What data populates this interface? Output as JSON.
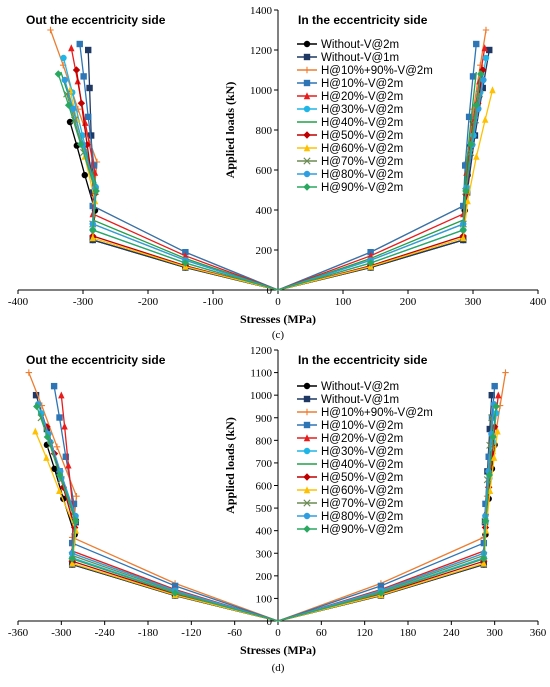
{
  "legend": [
    "Without-V@2m",
    "Without-V@1m",
    "H@10%+90%-V@2m",
    "H@10%-V@2m",
    "H@20%-V@2m",
    "H@30%-V@2m",
    "H@40%-V@2m",
    "H@50%-V@2m",
    "H@60%-V@2m",
    "H@70%-V@2m",
    "H@80%-V@2m",
    "H@90%-V@2m"
  ],
  "series_style": [
    {
      "color": "#000000",
      "marker": "circle"
    },
    {
      "color": "#1f3864",
      "marker": "square"
    },
    {
      "color": "#ed7d31",
      "marker": "plus"
    },
    {
      "color": "#2e75b6",
      "marker": "square"
    },
    {
      "color": "#e81c1c",
      "marker": "triangle"
    },
    {
      "color": "#1fb5e6",
      "marker": "circle"
    },
    {
      "color": "#23a048",
      "marker": "none"
    },
    {
      "color": "#c00000",
      "marker": "diamond"
    },
    {
      "color": "#ffc000",
      "marker": "triangle"
    },
    {
      "color": "#6d8b55",
      "marker": "x"
    },
    {
      "color": "#2f9ee0",
      "marker": "circle"
    },
    {
      "color": "#2aa860",
      "marker": "diamond"
    }
  ],
  "chart_data": [
    {
      "type": "line",
      "caption": "(c)",
      "left_title": "Out the eccentricity side",
      "right_title": "In the eccentricity side",
      "xlabel": "Stresses (MPa)",
      "ylabel": "Applied loads (kN)",
      "xlim": [
        -400,
        400
      ],
      "ylim": [
        0,
        1400
      ],
      "xticks": [
        -400,
        -300,
        -200,
        -100,
        0,
        100,
        200,
        300,
        400
      ],
      "yticks": [
        0,
        200,
        400,
        600,
        800,
        1000,
        1200,
        1400
      ],
      "yield_stress": 285,
      "series": [
        {
          "name": "Without-V@2m",
          "yield_load": 250,
          "max_load": 840,
          "left_end": -320,
          "right_end": 300
        },
        {
          "name": "Without-V@1m",
          "yield_load": 250,
          "max_load": 1200,
          "left_end": -292,
          "right_end": 325
        },
        {
          "name": "H@10%+90%-V@2m",
          "yield_load": 420,
          "max_load": 1300,
          "left_end": -350,
          "right_end": 320
        },
        {
          "name": "H@10%-V@2m",
          "yield_load": 420,
          "max_load": 1230,
          "left_end": -305,
          "right_end": 305
        },
        {
          "name": "H@20%-V@2m",
          "yield_load": 380,
          "max_load": 1210,
          "left_end": -318,
          "right_end": 318
        },
        {
          "name": "H@30%-V@2m",
          "yield_load": 300,
          "max_load": 1160,
          "left_end": -330,
          "right_end": 320
        },
        {
          "name": "H@40%-V@2m",
          "yield_load": 350,
          "max_load": 1090,
          "left_end": -334,
          "right_end": 305
        },
        {
          "name": "H@50%-V@2m",
          "yield_load": 270,
          "max_load": 1100,
          "left_end": -310,
          "right_end": 315
        },
        {
          "name": "H@60%-V@2m",
          "yield_load": 260,
          "max_load": 1000,
          "left_end": -320,
          "right_end": 330
        },
        {
          "name": "H@70%-V@2m",
          "yield_load": 330,
          "max_load": 980,
          "left_end": -325,
          "right_end": 310
        },
        {
          "name": "H@80%-V@2m",
          "yield_load": 330,
          "max_load": 1050,
          "left_end": -328,
          "right_end": 316
        },
        {
          "name": "H@90%-V@2m",
          "yield_load": 300,
          "max_load": 1080,
          "left_end": -338,
          "right_end": 312
        }
      ]
    },
    {
      "type": "line",
      "caption": "(d)",
      "left_title": "Out the eccentricity side",
      "right_title": "In the eccentricity side",
      "xlabel": "Stresses (MPa)",
      "ylabel": "Applied loads (kN)",
      "xlim": [
        -360,
        360
      ],
      "ylim": [
        0,
        1200
      ],
      "xticks": [
        -360,
        -300,
        -240,
        -180,
        -120,
        -60,
        0,
        60,
        120,
        180,
        240,
        300,
        360
      ],
      "yticks": [
        0,
        100,
        200,
        300,
        400,
        500,
        600,
        700,
        800,
        900,
        1000,
        1100,
        1200
      ],
      "yield_stress": 285,
      "series": [
        {
          "name": "Without-V@2m",
          "yield_load": 250,
          "max_load": 780,
          "left_end": -320,
          "right_end": 300
        },
        {
          "name": "Without-V@1m",
          "yield_load": 250,
          "max_load": 1000,
          "left_end": -335,
          "right_end": 296
        },
        {
          "name": "H@10%+90%-V@2m",
          "yield_load": 370,
          "max_load": 1100,
          "left_end": -345,
          "right_end": 315
        },
        {
          "name": "H@10%-V@2m",
          "yield_load": 345,
          "max_load": 1040,
          "left_end": -310,
          "right_end": 300
        },
        {
          "name": "H@20%-V@2m",
          "yield_load": 310,
          "max_load": 1000,
          "left_end": -300,
          "right_end": 305
        },
        {
          "name": "H@30%-V@2m",
          "yield_load": 280,
          "max_load": 920,
          "left_end": -328,
          "right_end": 302
        },
        {
          "name": "H@40%-V@2m",
          "yield_load": 300,
          "max_load": 920,
          "left_end": -330,
          "right_end": 298
        },
        {
          "name": "H@50%-V@2m",
          "yield_load": 265,
          "max_load": 860,
          "left_end": -320,
          "right_end": 300
        },
        {
          "name": "H@60%-V@2m",
          "yield_load": 255,
          "max_load": 840,
          "left_end": -336,
          "right_end": 304
        },
        {
          "name": "H@70%-V@2m",
          "yield_load": 290,
          "max_load": 900,
          "left_end": -328,
          "right_end": 296
        },
        {
          "name": "H@80%-V@2m",
          "yield_load": 300,
          "max_load": 960,
          "left_end": -332,
          "right_end": 299
        },
        {
          "name": "H@90%-V@2m",
          "yield_load": 275,
          "max_load": 950,
          "left_end": -334,
          "right_end": 302
        }
      ]
    }
  ]
}
